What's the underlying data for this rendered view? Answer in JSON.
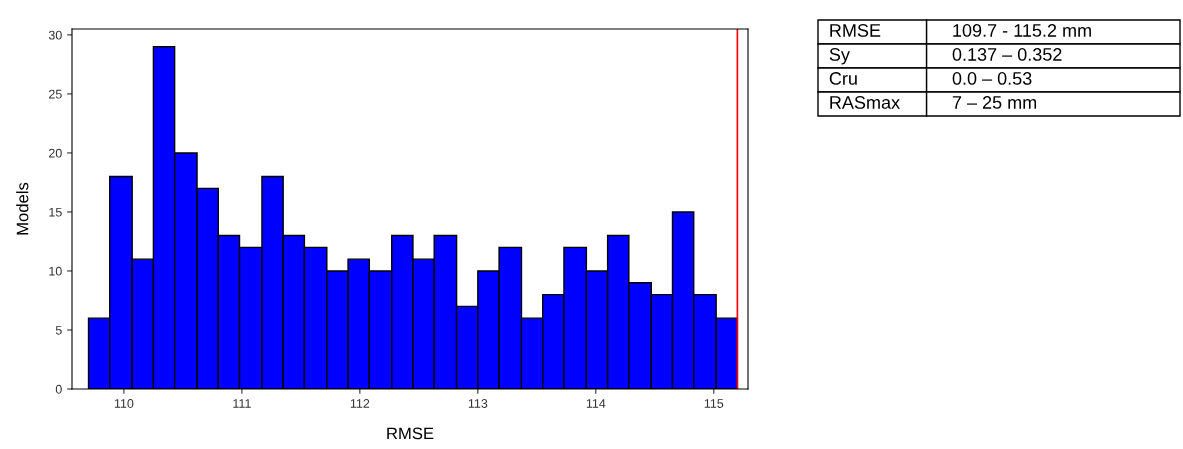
{
  "chart_data": {
    "type": "histogram",
    "xlabel": "RMSE",
    "ylabel": "Models",
    "color": "#0000ff",
    "bins": [
      109.7,
      109.88,
      110.07,
      110.25,
      110.43,
      110.62,
      110.8,
      110.98,
      111.17,
      111.35,
      111.53,
      111.72,
      111.9,
      112.08,
      112.27,
      112.45,
      112.63,
      112.82,
      113.0,
      113.18,
      113.37,
      113.55,
      113.73,
      113.92,
      114.1,
      114.28,
      114.47,
      114.65,
      114.83,
      115.02,
      115.2
    ],
    "values": [
      6,
      18,
      11,
      29,
      20,
      17,
      13,
      12,
      18,
      13,
      12,
      10,
      11,
      10,
      13,
      11,
      13,
      7,
      10,
      12,
      6,
      8,
      12,
      10,
      13,
      9,
      8,
      15,
      8,
      6
    ],
    "xlim": [
      109.56,
      115.29
    ],
    "xticks": [
      110,
      111,
      112,
      113,
      114,
      115
    ],
    "ylim": [
      0,
      30.5
    ],
    "yticks": [
      0,
      5,
      10,
      15,
      20,
      25,
      30
    ],
    "grid": false,
    "legend": false,
    "ref_lines": [
      {
        "axis": "x",
        "value": 115.2,
        "label": null,
        "color": "#ff0000"
      }
    ],
    "annotations": [
      "RMSE",
      "109.7 - 115.2 mm",
      "Sy",
      "0.137 – 0.352",
      "Cru",
      "0.0 – 0.53",
      "RASmax",
      "7 – 25 mm"
    ]
  }
}
